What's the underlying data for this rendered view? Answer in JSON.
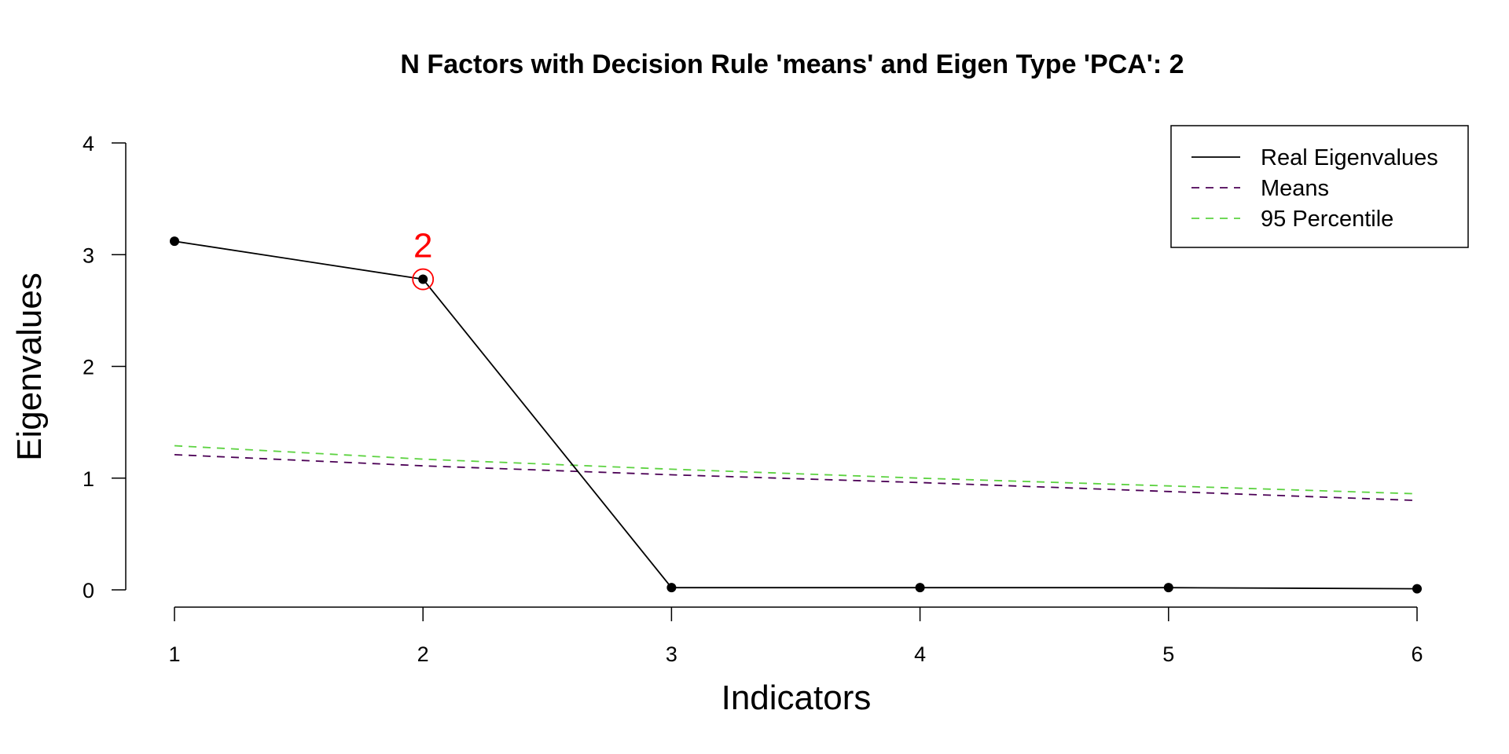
{
  "chart_data": {
    "type": "line",
    "title": "N Factors with Decision Rule 'means' and Eigen Type 'PCA': 2",
    "xlabel": "Indicators",
    "ylabel": "Eigenvalues",
    "x": [
      1,
      2,
      3,
      4,
      5,
      6
    ],
    "xlim": [
      1,
      6
    ],
    "ylim": [
      0,
      4
    ],
    "x_ticks": [
      "1",
      "2",
      "3",
      "4",
      "5",
      "6"
    ],
    "y_ticks": [
      "0",
      "1",
      "2",
      "3",
      "4"
    ],
    "grid": false,
    "legend_position": "top-right",
    "series": [
      {
        "name": "Real Eigenvalues",
        "values": [
          3.12,
          2.78,
          0.02,
          0.02,
          0.02,
          0.01
        ],
        "color": "#000000",
        "style": "solid",
        "markers": true
      },
      {
        "name": "Means",
        "values": [
          1.21,
          1.11,
          1.03,
          0.96,
          0.88,
          0.8
        ],
        "color": "#4b0055",
        "style": "dashed",
        "markers": false
      },
      {
        "name": "95 Percentile",
        "values": [
          1.29,
          1.17,
          1.08,
          1.0,
          0.93,
          0.86
        ],
        "color": "#5cd240",
        "style": "dashed",
        "markers": false
      }
    ],
    "annotation": {
      "text": "2",
      "x": 2,
      "y": 2.78,
      "color": "#ff0000"
    }
  }
}
